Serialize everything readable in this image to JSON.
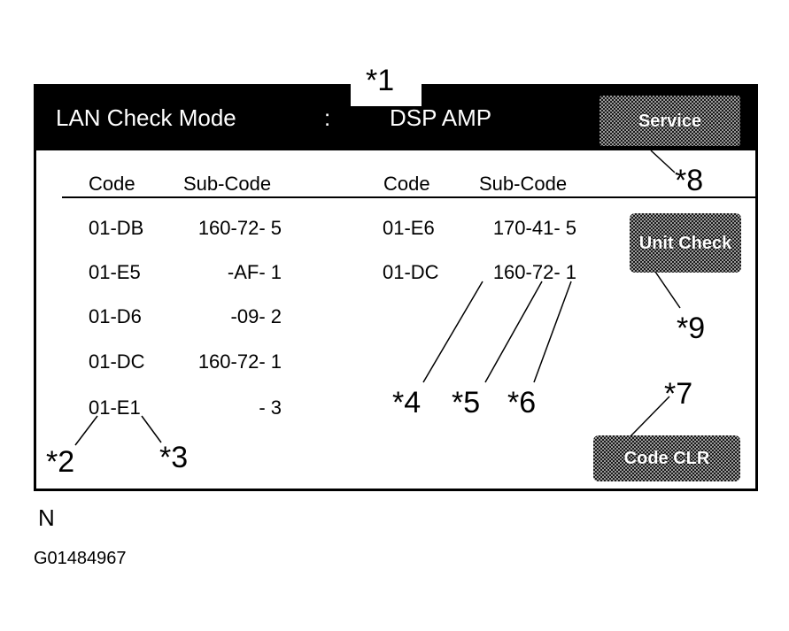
{
  "header": {
    "title": "LAN Check Mode",
    "separator": ":",
    "unit": "DSP AMP",
    "service_button": "Service"
  },
  "columns": {
    "left_code": "Code",
    "left_subcode": "Sub-Code",
    "right_code": "Code",
    "right_subcode": "Sub-Code"
  },
  "left_rows": [
    {
      "code": "01-DB",
      "subcode": "160-72- 5"
    },
    {
      "code": "01-E5",
      "subcode": "-AF- 1"
    },
    {
      "code": "01-D6",
      "subcode": "-09- 2"
    },
    {
      "code": "01-DC",
      "subcode": "160-72- 1"
    },
    {
      "code": "01-E1",
      "subcode": "- 3"
    }
  ],
  "right_rows": [
    {
      "code": "01-E6",
      "subcode": "170-41- 5"
    },
    {
      "code": "01-DC",
      "subcode": "160-72- 1"
    }
  ],
  "buttons": {
    "unit_check": "Unit Check",
    "code_clr": "Code CLR"
  },
  "callouts": {
    "c1": "*1",
    "c2": "*2",
    "c3": "*3",
    "c4": "*4",
    "c5": "*5",
    "c6": "*6",
    "c7": "*7",
    "c8": "*8",
    "c9": "*9"
  },
  "footer": {
    "orientation": "N",
    "figure_id": "G01484967"
  }
}
